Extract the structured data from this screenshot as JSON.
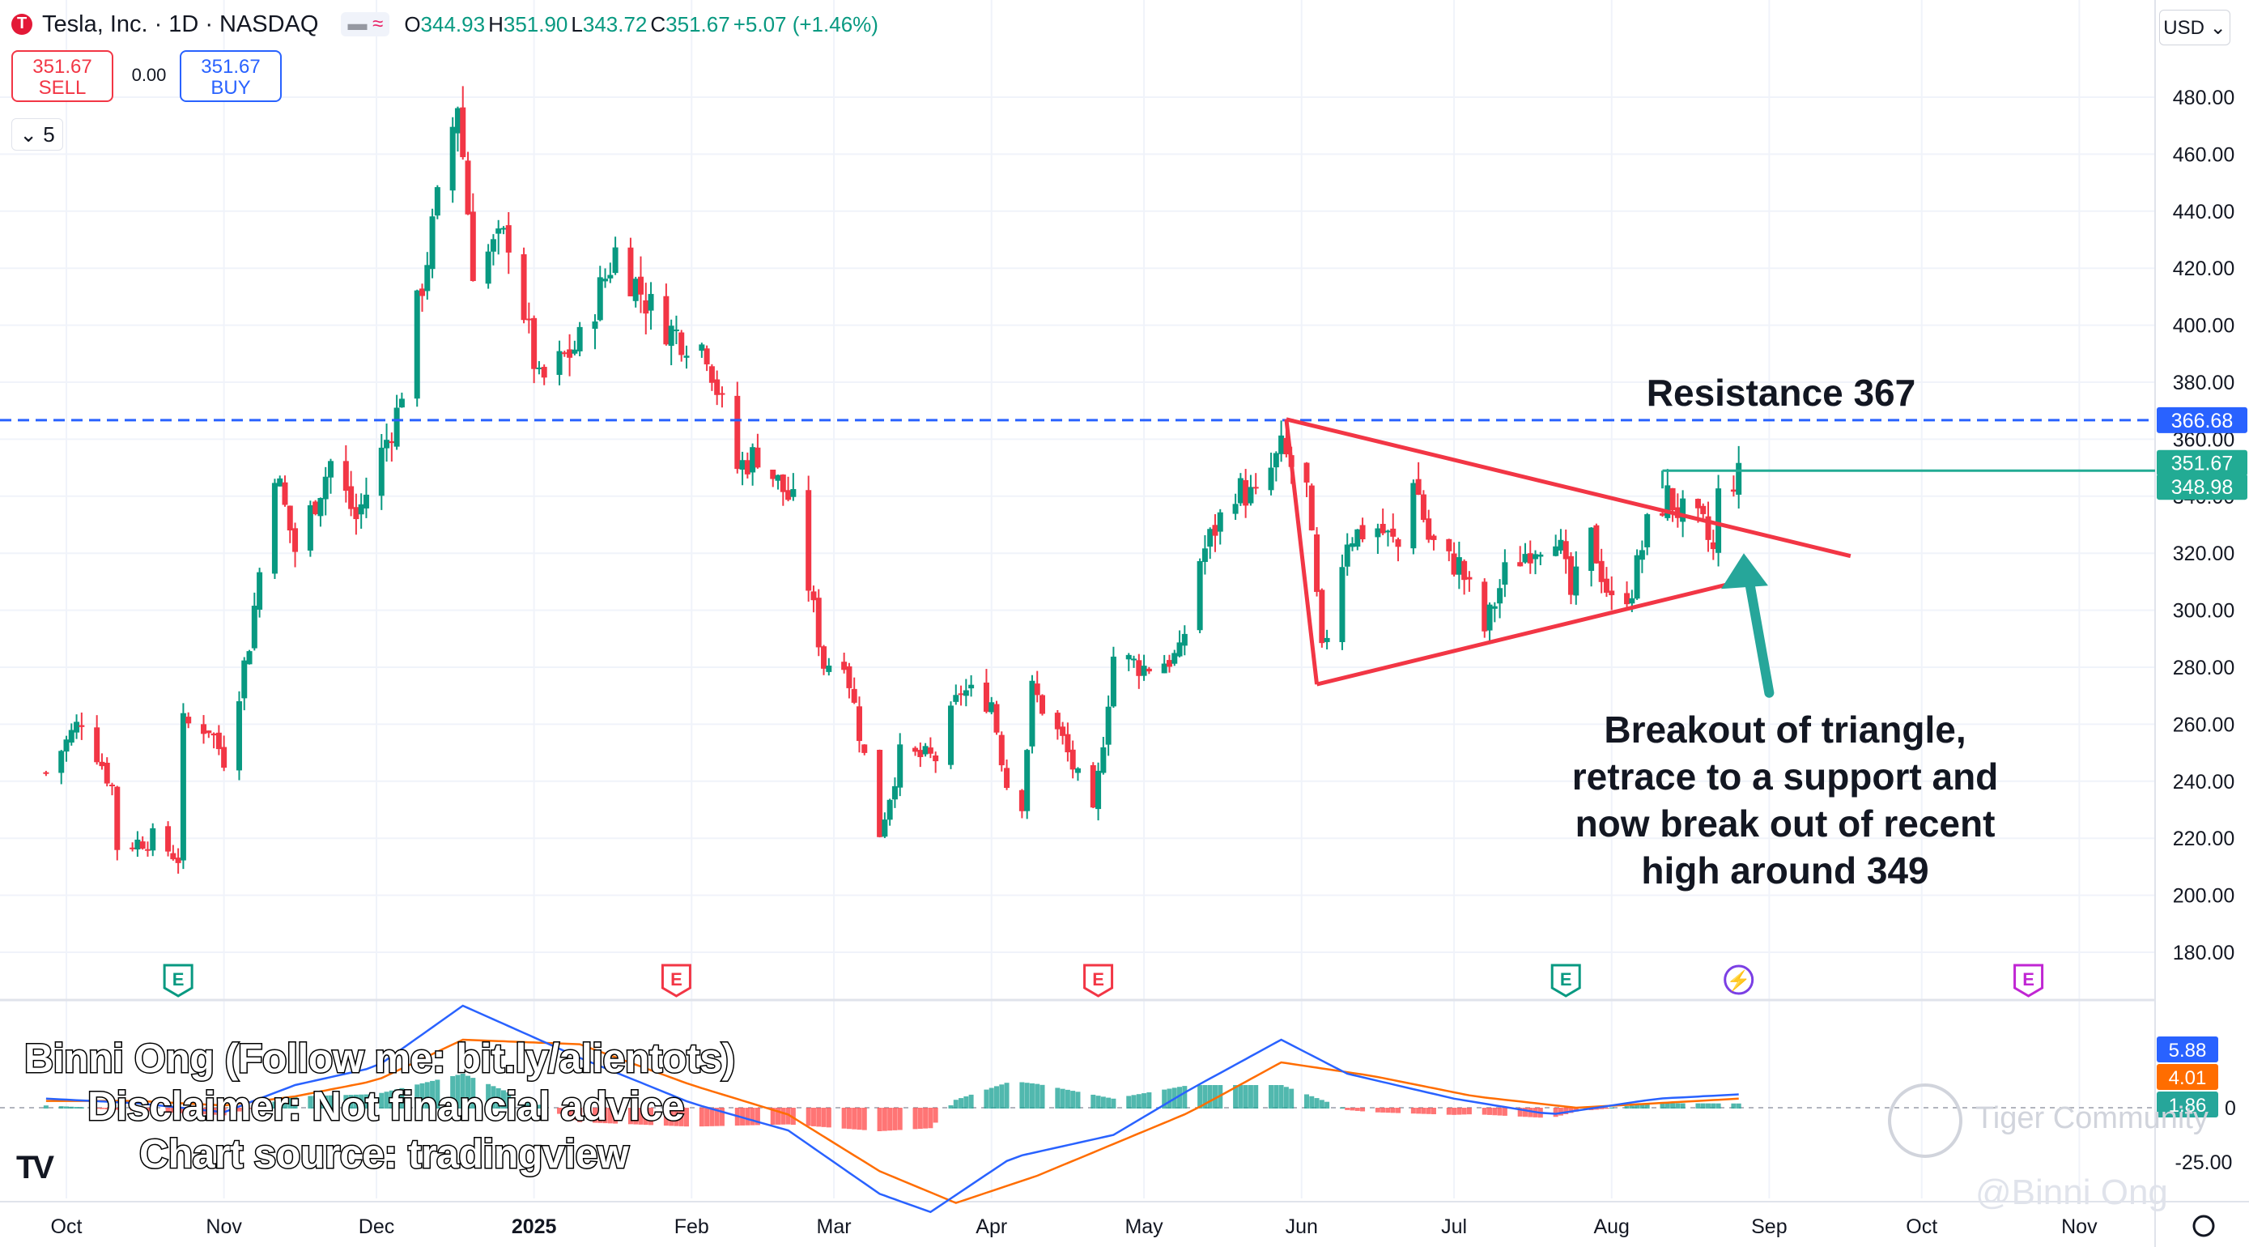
{
  "header": {
    "symbol": "Tesla, Inc.",
    "interval": "1D",
    "exchange": "NASDAQ",
    "separator": "·",
    "open_label": "O",
    "open": "344.93",
    "high_label": "H",
    "high": "351.90",
    "low_label": "L",
    "low": "343.72",
    "close_label": "C",
    "close": "351.67",
    "change": "+5.07 (+1.46%)"
  },
  "trade": {
    "sell_price": "351.67",
    "sell_label": "SELL",
    "spread": "0.00",
    "buy_price": "351.67",
    "buy_label": "BUY",
    "quantity": "5"
  },
  "currency": "USD",
  "overlay": {
    "line1": "Binni Ong (Follow me: bit.ly/alientots)",
    "line2": "Disclaimer: Not financial advice",
    "line3": "Chart source: tradingview",
    "resistance_label": "Resistance 367",
    "breakout_text": [
      "Breakout of triangle,",
      "retrace to a support and",
      "now break out of recent",
      "high around 349"
    ],
    "tiger_text": "Tiger Community",
    "credit": "@Binni Ong"
  },
  "chart_data": {
    "type": "candlestick",
    "ylim": [
      170,
      495
    ],
    "y_ticks": [
      "480.00",
      "460.00",
      "440.00",
      "420.00",
      "400.00",
      "380.00",
      "360.00",
      "340.00",
      "320.00",
      "300.00",
      "280.00",
      "260.00",
      "240.00",
      "220.00",
      "200.00",
      "180.00"
    ],
    "x_ticks": [
      "Oct",
      "Nov",
      "Dec",
      "2025",
      "Feb",
      "Mar",
      "Apr",
      "May",
      "Jun",
      "Jul",
      "Aug",
      "Sep",
      "Oct",
      "Nov"
    ],
    "x_tick_dates": [
      "2024-10-01",
      "2024-11-01",
      "2024-12-01",
      "2025-01-01",
      "2025-02-01",
      "2025-03-01",
      "2025-04-01",
      "2025-05-01",
      "2025-06-01",
      "2025-07-01",
      "2025-08-01",
      "2025-09-01",
      "2025-10-01",
      "2025-11-01"
    ],
    "price_key": [
      {
        "date": "2024-09-27",
        "close": 243
      },
      {
        "date": "2024-10-04",
        "close": 262
      },
      {
        "date": "2024-10-10",
        "close": 238
      },
      {
        "date": "2024-10-11",
        "close": 217
      },
      {
        "date": "2024-10-18",
        "close": 220
      },
      {
        "date": "2024-10-23",
        "close": 213
      },
      {
        "date": "2024-10-24",
        "close": 260
      },
      {
        "date": "2024-10-29",
        "close": 259
      },
      {
        "date": "2024-11-01",
        "close": 248
      },
      {
        "date": "2024-11-06",
        "close": 289
      },
      {
        "date": "2024-11-11",
        "close": 350
      },
      {
        "date": "2024-11-15",
        "close": 321
      },
      {
        "date": "2024-11-22",
        "close": 352
      },
      {
        "date": "2024-11-27",
        "close": 332
      },
      {
        "date": "2024-12-05",
        "close": 369
      },
      {
        "date": "2024-12-11",
        "close": 424
      },
      {
        "date": "2024-12-17",
        "close": 479
      },
      {
        "date": "2024-12-20",
        "close": 421
      },
      {
        "date": "2024-12-27",
        "close": 431
      },
      {
        "date": "2025-01-02",
        "close": 379
      },
      {
        "date": "2025-01-10",
        "close": 394
      },
      {
        "date": "2025-01-17",
        "close": 426
      },
      {
        "date": "2025-01-24",
        "close": 406
      },
      {
        "date": "2025-01-28",
        "close": 398
      },
      {
        "date": "2025-02-04",
        "close": 392
      },
      {
        "date": "2025-02-10",
        "close": 350
      },
      {
        "date": "2025-02-14",
        "close": 355
      },
      {
        "date": "2025-02-21",
        "close": 337
      },
      {
        "date": "2025-02-27",
        "close": 281
      },
      {
        "date": "2025-03-03",
        "close": 284
      },
      {
        "date": "2025-03-10",
        "close": 222
      },
      {
        "date": "2025-03-14",
        "close": 249
      },
      {
        "date": "2025-03-21",
        "close": 248
      },
      {
        "date": "2025-03-26",
        "close": 272
      },
      {
        "date": "2025-04-01",
        "close": 268
      },
      {
        "date": "2025-04-04",
        "close": 239
      },
      {
        "date": "2025-04-07",
        "close": 233
      },
      {
        "date": "2025-04-09",
        "close": 272
      },
      {
        "date": "2025-04-15",
        "close": 254
      },
      {
        "date": "2025-04-21",
        "close": 227
      },
      {
        "date": "2025-04-25",
        "close": 284
      },
      {
        "date": "2025-05-01",
        "close": 280
      },
      {
        "date": "2025-05-08",
        "close": 284
      },
      {
        "date": "2025-05-12",
        "close": 318
      },
      {
        "date": "2025-05-19",
        "close": 343
      },
      {
        "date": "2025-05-23",
        "close": 339
      },
      {
        "date": "2025-05-28",
        "close": 356
      },
      {
        "date": "2025-06-02",
        "close": 342
      },
      {
        "date": "2025-06-05",
        "close": 284
      },
      {
        "date": "2025-06-10",
        "close": 326
      },
      {
        "date": "2025-06-16",
        "close": 329
      },
      {
        "date": "2025-06-20",
        "close": 322
      },
      {
        "date": "2025-06-23",
        "close": 348
      },
      {
        "date": "2025-06-26",
        "close": 325
      },
      {
        "date": "2025-06-30",
        "close": 317
      },
      {
        "date": "2025-07-02",
        "close": 316
      },
      {
        "date": "2025-07-07",
        "close": 293
      },
      {
        "date": "2025-07-11",
        "close": 313
      },
      {
        "date": "2025-07-16",
        "close": 322
      },
      {
        "date": "2025-07-21",
        "close": 328
      },
      {
        "date": "2025-07-24",
        "close": 305
      },
      {
        "date": "2025-07-28",
        "close": 325
      },
      {
        "date": "2025-08-01",
        "close": 302
      },
      {
        "date": "2025-08-05",
        "close": 308
      },
      {
        "date": "2025-08-08",
        "close": 329
      },
      {
        "date": "2025-08-12",
        "close": 340
      },
      {
        "date": "2025-08-14",
        "close": 335
      },
      {
        "date": "2025-08-19",
        "close": 329
      },
      {
        "date": "2025-08-21",
        "close": 320
      },
      {
        "date": "2025-08-22",
        "close": 340
      },
      {
        "date": "2025-08-25",
        "close": 346
      },
      {
        "date": "2025-08-26",
        "close": 351.67
      }
    ],
    "lines": {
      "resistance": 366.68,
      "recent_high": 348.98,
      "last_close": 351.67,
      "triangle_upper": [
        {
          "date": "2025-05-29",
          "price": 367
        },
        {
          "date": "2025-09-17",
          "price": 319
        }
      ],
      "triangle_lower": [
        {
          "date": "2025-06-04",
          "price": 274
        },
        {
          "date": "2025-08-26",
          "price": 310
        }
      ]
    },
    "price_labels": [
      {
        "text": "366.68",
        "color": "#2962ff",
        "value": 366.68
      },
      {
        "text": "351.67",
        "color": "#22ab94",
        "value": 351.67
      },
      {
        "text": "348.98",
        "color": "#22ab94",
        "value": 348.98
      }
    ],
    "earnings_markers": [
      {
        "date": "2024-10-23",
        "type": "E",
        "color": "#089981"
      },
      {
        "date": "2025-01-29",
        "type": "E",
        "color": "#f23645"
      },
      {
        "date": "2025-04-22",
        "type": "E",
        "color": "#f23645"
      },
      {
        "date": "2025-07-23",
        "type": "E",
        "color": "#089981"
      },
      {
        "date": "2025-08-26",
        "type": "bolt",
        "color": "#7b3fe4"
      },
      {
        "date": "2025-10-22",
        "type": "E",
        "color": "#c026d3"
      }
    ],
    "macd": {
      "zero_label": "0",
      "y_tick": "-25.00",
      "macd_value": "5.88",
      "signal_value": "4.01",
      "hist_value": "1.86",
      "macd_color": "#2962ff",
      "signal_color": "#ff6d00",
      "macd_key": [
        {
          "date": "2024-09-27",
          "v": 4
        },
        {
          "date": "2024-10-15",
          "v": 2
        },
        {
          "date": "2024-11-01",
          "v": -2
        },
        {
          "date": "2024-11-15",
          "v": 10
        },
        {
          "date": "2024-12-01",
          "v": 18
        },
        {
          "date": "2024-12-18",
          "v": 45
        },
        {
          "date": "2025-01-10",
          "v": 22
        },
        {
          "date": "2025-02-01",
          "v": 2
        },
        {
          "date": "2025-02-20",
          "v": -10
        },
        {
          "date": "2025-03-10",
          "v": -38
        },
        {
          "date": "2025-03-20",
          "v": -46
        },
        {
          "date": "2025-04-05",
          "v": -22
        },
        {
          "date": "2025-04-25",
          "v": -12
        },
        {
          "date": "2025-05-10",
          "v": 8
        },
        {
          "date": "2025-05-28",
          "v": 30
        },
        {
          "date": "2025-06-10",
          "v": 15
        },
        {
          "date": "2025-07-01",
          "v": 4
        },
        {
          "date": "2025-07-20",
          "v": -3
        },
        {
          "date": "2025-08-10",
          "v": 4
        },
        {
          "date": "2025-08-26",
          "v": 5.88
        }
      ],
      "signal_key": [
        {
          "date": "2024-09-27",
          "v": 3
        },
        {
          "date": "2024-10-15",
          "v": 3
        },
        {
          "date": "2024-11-01",
          "v": 1
        },
        {
          "date": "2024-11-15",
          "v": 5
        },
        {
          "date": "2024-12-01",
          "v": 12
        },
        {
          "date": "2024-12-18",
          "v": 30
        },
        {
          "date": "2025-01-10",
          "v": 28
        },
        {
          "date": "2025-02-01",
          "v": 10
        },
        {
          "date": "2025-02-20",
          "v": -3
        },
        {
          "date": "2025-03-10",
          "v": -28
        },
        {
          "date": "2025-03-25",
          "v": -42
        },
        {
          "date": "2025-04-10",
          "v": -30
        },
        {
          "date": "2025-04-25",
          "v": -16
        },
        {
          "date": "2025-05-10",
          "v": -2
        },
        {
          "date": "2025-05-28",
          "v": 20
        },
        {
          "date": "2025-06-15",
          "v": 14
        },
        {
          "date": "2025-07-05",
          "v": 5
        },
        {
          "date": "2025-07-25",
          "v": 0
        },
        {
          "date": "2025-08-10",
          "v": 2
        },
        {
          "date": "2025-08-26",
          "v": 4.01
        }
      ]
    }
  }
}
